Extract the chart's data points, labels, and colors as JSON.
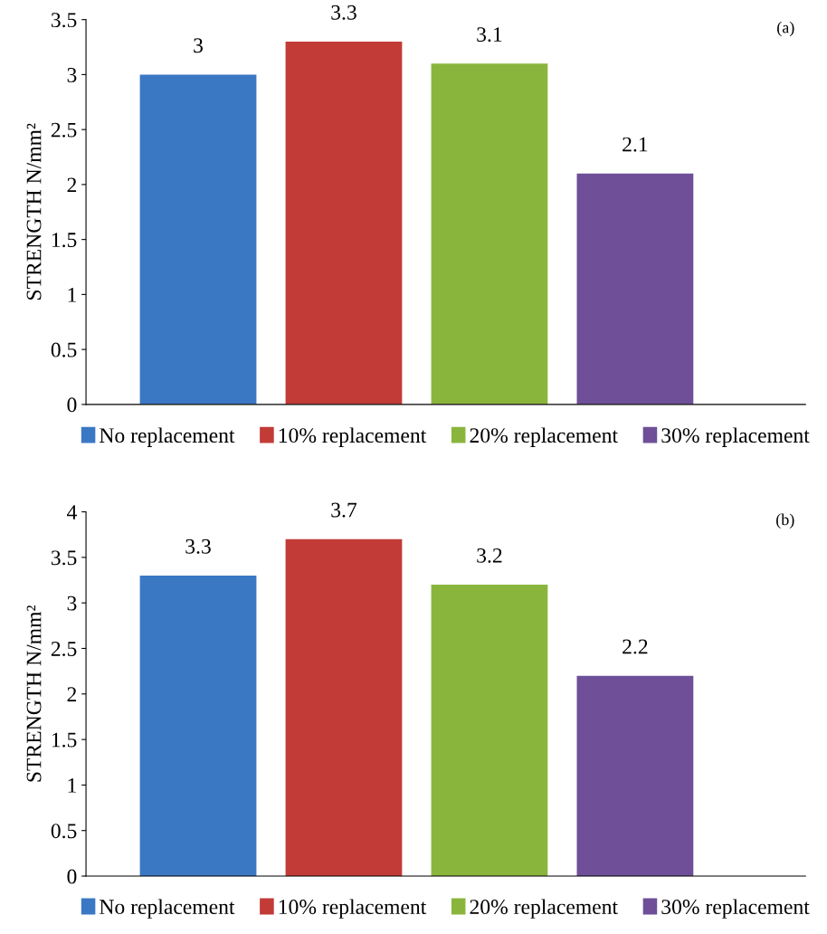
{
  "chart_data": [
    {
      "type": "bar",
      "categories": [
        null
      ],
      "ylabel": "STRENGTH N/mm²",
      "ylim": [
        0,
        3.5
      ],
      "yticks": [
        0,
        0.5,
        1,
        1.5,
        2,
        2.5,
        3,
        3.5
      ],
      "grid": false,
      "legend": "bottom",
      "data_labels": true,
      "annotations": [
        "(a)"
      ],
      "series": [
        {
          "name": "No replacement",
          "color": "#3a78c4",
          "values": [
            3
          ]
        },
        {
          "name": "10% replacement",
          "color": "#c23b37",
          "values": [
            3.3
          ]
        },
        {
          "name": "20% replacement",
          "color": "#8ab53c",
          "values": [
            3.1
          ]
        },
        {
          "name": "30% replacement",
          "color": "#6e4f98",
          "values": [
            2.1
          ]
        }
      ]
    },
    {
      "type": "bar",
      "categories": [
        null
      ],
      "ylabel": "STRENGTH N/mm²",
      "ylim": [
        0,
        4
      ],
      "yticks": [
        0,
        0.5,
        1,
        1.5,
        2,
        2.5,
        3,
        3.5,
        4
      ],
      "grid": false,
      "legend": "bottom",
      "data_labels": true,
      "annotations": [
        "(b)"
      ],
      "series": [
        {
          "name": "No replacement",
          "color": "#3a78c4",
          "values": [
            3.3
          ]
        },
        {
          "name": "10% replacement",
          "color": "#c23b37",
          "values": [
            3.7
          ]
        },
        {
          "name": "20% replacement",
          "color": "#8ab53c",
          "values": [
            3.2
          ]
        },
        {
          "name": "30% replacement",
          "color": "#6e4f98",
          "values": [
            2.2
          ]
        }
      ]
    }
  ]
}
